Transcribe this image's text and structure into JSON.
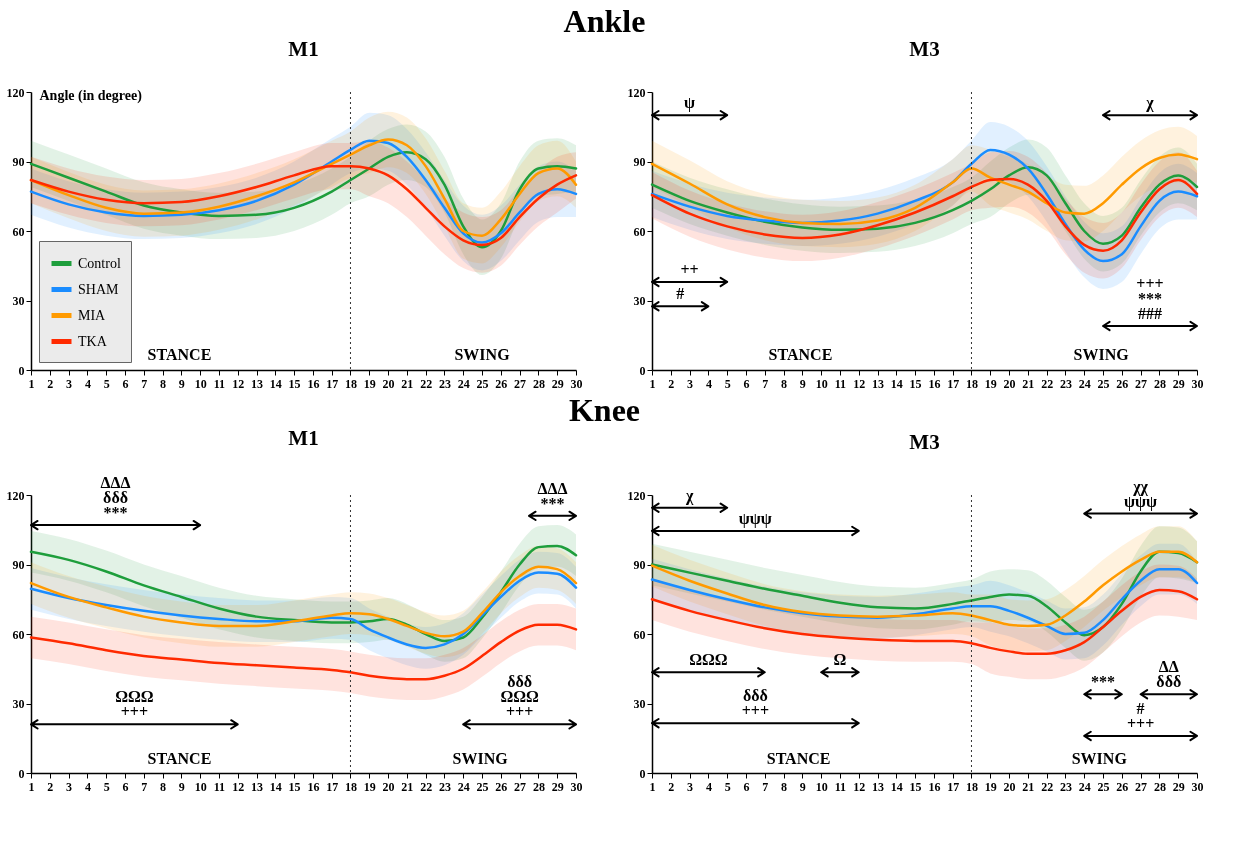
{
  "chart_data": [
    {
      "type": "line",
      "title": "Ankle",
      "subtitle": "M1",
      "ylabel": "Angle (in degree)",
      "legend": "bottom left",
      "x": [
        1,
        3,
        5,
        7,
        9,
        11,
        13,
        15,
        17,
        18,
        19,
        20,
        21,
        22,
        23,
        24,
        25,
        26,
        27,
        28,
        29,
        30
      ],
      "xlim": [
        1,
        30
      ],
      "xticks": [
        1,
        2,
        3,
        4,
        5,
        6,
        7,
        8,
        9,
        10,
        11,
        12,
        13,
        14,
        15,
        16,
        17,
        18,
        19,
        20,
        21,
        22,
        23,
        24,
        25,
        26,
        27,
        28,
        29,
        30
      ],
      "ylim": [
        0,
        120
      ],
      "yticks": [
        0,
        30,
        60,
        90,
        120
      ],
      "series": [
        {
          "name": "Control",
          "color": "#1e9e3c",
          "values": [
            89,
            83,
            77,
            71,
            68,
            66.5,
            67,
            70,
            77,
            82,
            87,
            92,
            94,
            91,
            80,
            62,
            53,
            60,
            78,
            87,
            88,
            87
          ],
          "lower": [
            79,
            73,
            67,
            61,
            58,
            56.5,
            57,
            60,
            67,
            72,
            75,
            80,
            82,
            79,
            68,
            50,
            41,
            48,
            66,
            75,
            76,
            77
          ],
          "upper": [
            99,
            93,
            87,
            81,
            78,
            76.5,
            77,
            80,
            87,
            92,
            99,
            104,
            106,
            103,
            92,
            74,
            65,
            72,
            90,
            99,
            100,
            97
          ]
        },
        {
          "name": "SHAM",
          "color": "#1a8cff",
          "values": [
            77,
            71.5,
            68,
            66.5,
            67,
            69,
            73,
            80,
            90,
            95,
            99,
            98,
            92,
            82,
            70,
            59,
            55,
            59,
            68,
            76,
            78,
            76
          ],
          "lower": [
            67,
            61.5,
            58,
            56.5,
            57,
            59,
            63,
            70,
            80,
            85,
            87,
            86,
            80,
            70,
            58,
            47,
            43,
            47,
            56,
            64,
            66,
            66
          ],
          "upper": [
            87,
            81.5,
            78,
            76.5,
            77,
            79,
            83,
            90,
            100,
            105,
            111,
            110,
            104,
            94,
            82,
            71,
            67,
            71,
            80,
            88,
            90,
            86
          ]
        },
        {
          "name": "MIA",
          "color": "#ff9a00",
          "values": [
            82,
            75.5,
            70,
            67.5,
            68,
            70.5,
            75,
            81,
            89,
            93,
            97,
            99.5,
            97,
            88,
            74,
            60,
            58,
            65,
            76,
            85,
            87,
            80
          ],
          "lower": [
            72,
            65.5,
            60,
            57.5,
            58,
            60.5,
            65,
            71,
            79,
            83,
            85,
            87.5,
            85,
            76,
            62,
            48,
            46,
            53,
            64,
            73,
            75,
            70
          ],
          "upper": [
            92,
            85.5,
            80,
            77.5,
            78,
            80.5,
            85,
            91,
            99,
            103,
            109,
            111.5,
            109,
            100,
            86,
            72,
            70,
            77,
            88,
            97,
            99,
            90
          ]
        },
        {
          "name": "TKA",
          "color": "#ff2a00",
          "values": [
            82,
            77,
            73.5,
            72,
            72.5,
            75,
            79,
            84,
            88,
            88,
            87,
            84,
            78,
            70,
            62,
            56,
            54,
            57,
            66,
            74,
            80,
            84
          ],
          "lower": [
            72,
            67,
            63.5,
            62,
            62.5,
            65,
            69,
            74,
            78,
            78,
            75,
            72,
            66,
            58,
            50,
            44,
            42,
            45,
            54,
            62,
            68,
            74
          ],
          "upper": [
            92,
            87,
            83.5,
            82,
            82.5,
            85,
            89,
            94,
            98,
            98,
            99,
            96,
            90,
            82,
            74,
            68,
            66,
            69,
            78,
            86,
            92,
            94
          ]
        }
      ],
      "ref_lines": [
        {
          "axis": "x",
          "value": 18,
          "line_style": "dotted"
        }
      ],
      "annotations": [
        "STANCE",
        "SWING"
      ]
    },
    {
      "type": "line",
      "subtitle": "M3",
      "x": [
        1,
        3,
        5,
        7,
        9,
        11,
        13,
        15,
        17,
        18,
        19,
        20,
        21,
        22,
        23,
        24,
        25,
        26,
        27,
        28,
        29,
        30
      ],
      "xlim": [
        1,
        30
      ],
      "xticks": [
        1,
        2,
        3,
        4,
        5,
        6,
        7,
        8,
        9,
        10,
        11,
        12,
        13,
        14,
        15,
        16,
        17,
        18,
        19,
        20,
        21,
        22,
        23,
        24,
        25,
        26,
        27,
        28,
        29,
        30
      ],
      "ylim": [
        0,
        120
      ],
      "yticks": [
        0,
        30,
        60,
        90,
        120
      ],
      "series": [
        {
          "color": "#1e9e3c",
          "values": [
            80,
            73,
            68,
            64,
            61.5,
            60.5,
            61,
            63.5,
            69,
            73,
            78,
            84,
            87.5,
            84,
            72,
            60,
            54.5,
            58,
            70,
            80,
            84,
            79
          ],
          "lower": [
            70,
            63,
            58,
            54,
            51.5,
            50.5,
            51,
            53.5,
            59,
            63,
            66,
            72,
            75.5,
            72,
            60,
            48,
            42.5,
            46,
            58,
            68,
            72,
            69
          ],
          "upper": [
            90,
            83,
            78,
            74,
            71.5,
            70.5,
            71,
            73.5,
            79,
            83,
            90,
            96,
            99.5,
            96,
            84,
            72,
            66.5,
            70,
            82,
            92,
            96,
            89
          ]
        },
        {
          "color": "#1a8cff",
          "values": [
            76,
            70.5,
            66.5,
            64.5,
            63.5,
            64.5,
            67.5,
            73,
            81,
            89,
            95,
            93,
            87,
            76,
            63,
            52,
            47,
            50,
            62,
            73,
            77,
            75
          ],
          "lower": [
            66,
            60.5,
            56.5,
            54.5,
            53.5,
            54.5,
            57.5,
            63,
            71,
            79,
            83,
            81,
            75,
            64,
            51,
            40,
            35,
            38,
            50,
            61,
            65,
            65
          ],
          "upper": [
            86,
            80.5,
            76.5,
            74.5,
            73.5,
            74.5,
            77.5,
            83,
            91,
            99,
            107,
            105,
            99,
            88,
            75,
            64,
            59,
            62,
            74,
            85,
            89,
            85
          ]
        },
        {
          "color": "#ff9a00",
          "values": [
            89,
            80.5,
            71.5,
            66,
            63.5,
            63,
            64.5,
            70,
            81,
            87,
            83,
            80,
            77,
            72,
            68,
            67.5,
            72,
            80,
            87,
            91.5,
            93,
            91
          ],
          "lower": [
            79,
            70.5,
            61.5,
            56,
            53.5,
            53,
            54.5,
            60,
            71,
            77,
            71,
            68,
            65,
            60,
            56,
            55.5,
            60,
            68,
            75,
            79.5,
            81,
            81
          ],
          "upper": [
            99,
            90.5,
            81.5,
            76,
            73.5,
            73,
            74.5,
            80,
            91,
            97,
            95,
            92,
            89,
            84,
            80,
            79.5,
            84,
            92,
            99,
            103.5,
            105,
            101
          ]
        },
        {
          "color": "#ff2a00",
          "values": [
            75.5,
            67.5,
            62,
            58.5,
            57,
            58.5,
            62.5,
            68,
            75,
            79,
            82,
            82.5,
            80,
            73,
            62,
            54,
            51.5,
            56,
            68,
            78,
            82,
            76
          ],
          "lower": [
            65.5,
            57.5,
            52,
            48.5,
            47,
            48.5,
            52.5,
            58,
            65,
            69,
            70,
            70.5,
            68,
            61,
            50,
            42,
            39.5,
            44,
            56,
            66,
            70,
            66
          ],
          "upper": [
            85.5,
            77.5,
            72,
            68.5,
            67,
            68.5,
            72.5,
            78,
            85,
            89,
            94,
            94.5,
            92,
            85,
            74,
            66,
            63.5,
            68,
            80,
            90,
            94,
            86
          ]
        }
      ],
      "ref_lines": [
        {
          "axis": "x",
          "value": 18,
          "line_style": "dotted"
        }
      ],
      "annotations": [
        "ψ",
        "χ",
        "++",
        "#",
        "+++\n***\n###",
        "STANCE",
        "SWING"
      ]
    },
    {
      "type": "line",
      "title": "Knee",
      "subtitle": "M1",
      "x": [
        1,
        3,
        5,
        7,
        9,
        11,
        13,
        15,
        17,
        18,
        19,
        20,
        21,
        22,
        23,
        24,
        25,
        26,
        27,
        28,
        29,
        30
      ],
      "xlim": [
        1,
        30
      ],
      "xticks": [
        1,
        2,
        3,
        4,
        5,
        6,
        7,
        8,
        9,
        10,
        11,
        12,
        13,
        14,
        15,
        16,
        17,
        18,
        19,
        20,
        21,
        22,
        23,
        24,
        25,
        26,
        27,
        28,
        29,
        30
      ],
      "ylim": [
        0,
        120
      ],
      "yticks": [
        0,
        30,
        60,
        90,
        120
      ],
      "series": [
        {
          "color": "#1e9e3c",
          "values": [
            95.5,
            92,
            87,
            81,
            76,
            71,
            67.5,
            66,
            65,
            65,
            65.5,
            66.5,
            64,
            60,
            57,
            58.5,
            67,
            78,
            90,
            97.5,
            98,
            94
          ],
          "lower": [
            86.5,
            83,
            78,
            72,
            67,
            62,
            58.5,
            57,
            56,
            56,
            56.5,
            57.5,
            55,
            51,
            48,
            49.5,
            58,
            69,
            81,
            88.5,
            89,
            85
          ],
          "upper": [
            104.5,
            101,
            96,
            90,
            85,
            80,
            76.5,
            75,
            74,
            74,
            74.5,
            75.5,
            73,
            69,
            66,
            67.5,
            76,
            87,
            99,
            106.5,
            107,
            103
          ]
        },
        {
          "color": "#1a8cff",
          "values": [
            79.5,
            75.5,
            72.5,
            70,
            68,
            66.5,
            65.5,
            65.5,
            67,
            66.5,
            62,
            58.5,
            55.5,
            54,
            55.5,
            60,
            68,
            76,
            83,
            86.5,
            86,
            80
          ],
          "lower": [
            70.5,
            66.5,
            63.5,
            61,
            59,
            57.5,
            56.5,
            56.5,
            58,
            57.5,
            53,
            49.5,
            46.5,
            45,
            46.5,
            51,
            59,
            67,
            74,
            77.5,
            77,
            71
          ],
          "upper": [
            88.5,
            84.5,
            81.5,
            79,
            77,
            75.5,
            74.5,
            74.5,
            76,
            75.5,
            71,
            67.5,
            64.5,
            63,
            64.5,
            69,
            77,
            85,
            92,
            95.5,
            95,
            89
          ]
        },
        {
          "color": "#ff9a00",
          "values": [
            82,
            76,
            71.5,
            67.5,
            65,
            63.5,
            63.5,
            65.5,
            68,
            69,
            68.5,
            66.5,
            63.5,
            60.5,
            59,
            61,
            69,
            78,
            85,
            89,
            88,
            82
          ],
          "lower": [
            73,
            67,
            62.5,
            58.5,
            56,
            54.5,
            54.5,
            56.5,
            59,
            60,
            59.5,
            57.5,
            54.5,
            51.5,
            50,
            52,
            60,
            69,
            76,
            80,
            79,
            73
          ],
          "upper": [
            91,
            85,
            80.5,
            76.5,
            74,
            72.5,
            72.5,
            74.5,
            77,
            78,
            77.5,
            75.5,
            72.5,
            69.5,
            68,
            70,
            78,
            87,
            94,
            98,
            97,
            91
          ]
        },
        {
          "color": "#ff2a00",
          "values": [
            58.5,
            56,
            53,
            50.5,
            49,
            47.5,
            46.5,
            45.5,
            44.5,
            43.5,
            42,
            41,
            40.5,
            40.5,
            42,
            45,
            50.5,
            56.5,
            61.5,
            64,
            64,
            62
          ],
          "lower": [
            49.5,
            47,
            44,
            41.5,
            40,
            38.5,
            37.5,
            36.5,
            35.5,
            34.5,
            33,
            32,
            31.5,
            31.5,
            33,
            36,
            41.5,
            47.5,
            52.5,
            55,
            55,
            53
          ],
          "upper": [
            67.5,
            65,
            62,
            59.5,
            58,
            56.5,
            55.5,
            54.5,
            53.5,
            52.5,
            51,
            50,
            49.5,
            49.5,
            51,
            54,
            59.5,
            65.5,
            70.5,
            73,
            73,
            71
          ]
        }
      ],
      "ref_lines": [
        {
          "axis": "x",
          "value": 18,
          "line_style": "dotted"
        }
      ],
      "annotations": [
        "ΔΔΔ\nδδδ\n***",
        "ΔΔΔ\n***",
        "ΩΩΩ\n+++",
        "δδδ\nΩΩΩ\n+++",
        "STANCE",
        "SWING"
      ]
    },
    {
      "type": "line",
      "subtitle": "M3",
      "x": [
        1,
        3,
        5,
        7,
        9,
        11,
        13,
        15,
        17,
        18,
        19,
        20,
        21,
        22,
        23,
        24,
        25,
        26,
        27,
        28,
        29,
        30
      ],
      "xlim": [
        1,
        30
      ],
      "xticks": [
        1,
        2,
        3,
        4,
        5,
        6,
        7,
        8,
        9,
        10,
        11,
        12,
        13,
        14,
        15,
        16,
        17,
        18,
        19,
        20,
        21,
        22,
        23,
        24,
        25,
        26,
        27,
        28,
        29,
        30
      ],
      "ylim": [
        0,
        120
      ],
      "yticks": [
        0,
        30,
        60,
        90,
        120
      ],
      "series": [
        {
          "color": "#1e9e3c",
          "values": [
            90,
            86.5,
            83,
            79.5,
            76.5,
            73.5,
            71.5,
            71,
            73,
            74.5,
            76,
            77,
            76.5,
            72,
            65,
            59.5,
            63,
            73,
            87,
            95.5,
            95,
            91
          ],
          "lower": [
            81,
            77.5,
            74,
            70.5,
            67.5,
            64.5,
            62.5,
            62,
            64,
            65.5,
            65,
            66,
            65.5,
            61,
            54,
            48.5,
            52,
            62,
            76,
            84.5,
            84,
            82
          ],
          "upper": [
            99,
            95.5,
            92,
            88.5,
            85.5,
            82.5,
            80.5,
            80,
            82,
            83.5,
            87,
            88,
            87.5,
            83,
            76,
            70.5,
            74,
            84,
            98,
            106.5,
            106,
            100
          ]
        },
        {
          "color": "#1a8cff",
          "values": [
            83.5,
            79,
            75,
            71.5,
            69,
            67.5,
            67,
            68.5,
            71,
            72,
            72,
            70,
            67,
            63.5,
            60,
            60.5,
            66,
            75,
            83,
            88,
            88,
            82
          ],
          "lower": [
            74.5,
            70,
            66,
            62.5,
            60,
            58.5,
            58,
            59.5,
            62,
            63,
            61,
            59,
            56,
            52.5,
            49,
            49.5,
            55,
            64,
            72,
            77,
            77,
            73
          ],
          "upper": [
            92.5,
            88,
            84,
            80.5,
            78,
            76.5,
            76,
            77.5,
            80,
            81,
            83,
            81,
            78,
            74.5,
            71,
            71.5,
            77,
            86,
            94,
            99,
            99,
            91
          ]
        },
        {
          "color": "#ff9a00",
          "values": [
            89.5,
            83,
            77.5,
            72.5,
            69.5,
            68,
            67.5,
            68,
            69,
            68,
            66,
            64,
            63.5,
            64,
            68,
            74,
            81,
            87,
            92,
            95.5,
            95.5,
            91
          ],
          "lower": [
            80.5,
            74,
            68.5,
            63.5,
            60.5,
            59,
            58.5,
            59,
            60,
            59,
            55,
            53,
            52.5,
            53,
            57,
            63,
            70,
            76,
            81,
            84.5,
            84.5,
            82
          ],
          "upper": [
            98.5,
            92,
            86.5,
            81.5,
            78.5,
            77,
            76.5,
            77,
            78,
            77,
            77,
            75,
            74.5,
            75,
            79,
            85,
            92,
            98,
            103,
            106.5,
            106.5,
            100
          ]
        },
        {
          "color": "#ff2a00",
          "values": [
            75,
            70,
            66,
            62.5,
            60,
            58.5,
            57.5,
            57,
            57,
            56,
            54,
            52.5,
            51.5,
            51.5,
            53,
            56.5,
            63,
            70,
            76,
            79,
            78.5,
            75
          ],
          "lower": [
            66,
            61,
            57,
            53.5,
            51,
            49.5,
            48.5,
            48,
            48,
            47,
            43,
            41.5,
            40.5,
            40.5,
            42,
            45.5,
            52,
            59,
            65,
            68,
            67.5,
            66
          ],
          "upper": [
            84,
            79,
            75,
            71.5,
            69,
            67.5,
            66.5,
            66,
            66,
            65,
            65,
            63.5,
            62.5,
            62.5,
            64,
            67.5,
            74,
            81,
            87,
            90,
            89.5,
            84
          ]
        }
      ],
      "ref_lines": [
        {
          "axis": "x",
          "value": 18,
          "line_style": "dotted"
        }
      ],
      "annotations": [
        "χ",
        "ψψψ",
        "χχ\nψψψ",
        "ΩΩΩ",
        "Ω",
        "δδδ\n+++",
        "***",
        "ΔΔ\nδδδ",
        "#\n+++",
        "STANCE",
        "SWING"
      ]
    }
  ]
}
